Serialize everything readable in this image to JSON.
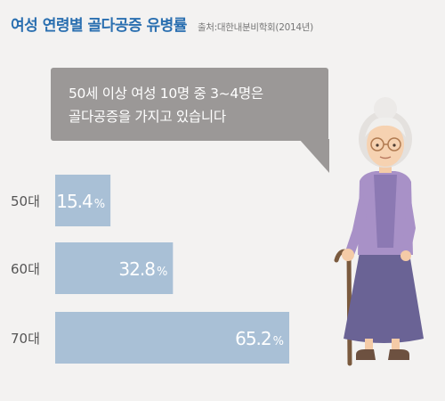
{
  "header": {
    "title": "여성 연령별 골다공증 유병률",
    "source": "출처:대한내분비학회(2014년)"
  },
  "bubble": {
    "lines": [
      "50세 이상 여성 10명 중 3~4명은",
      "골다공증을 가지고 있습니다"
    ]
  },
  "chart_data": {
    "type": "bar",
    "orientation": "horizontal",
    "categories": [
      "50대",
      "60대",
      "70대"
    ],
    "values": [
      15.4,
      32.8,
      65.2
    ],
    "unit": "%",
    "title": "여성 연령별 골다공증 유병률",
    "xlabel": "",
    "ylabel": "",
    "xlim": [
      0,
      65.2
    ],
    "grid": false,
    "bar_color": "#a9c0d6",
    "label_color": "#ffffff"
  }
}
